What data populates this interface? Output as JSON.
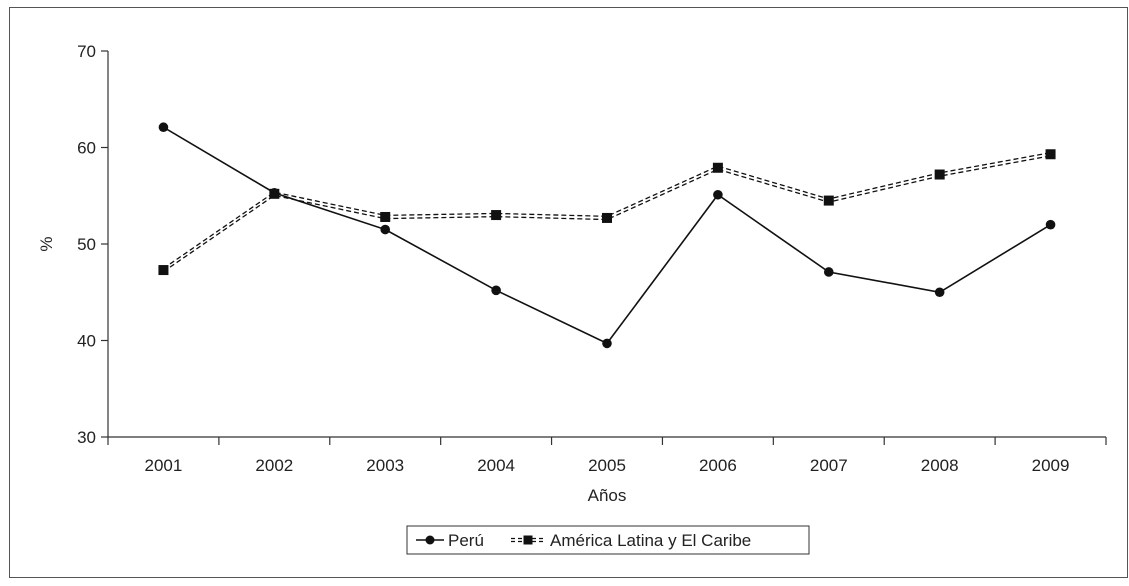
{
  "chart_data": {
    "type": "line",
    "title": "",
    "xlabel": "Años",
    "ylabel": "%",
    "categories": [
      "2001",
      "2002",
      "2003",
      "2004",
      "2005",
      "2006",
      "2007",
      "2008",
      "2009"
    ],
    "ylim": [
      30,
      70
    ],
    "yticks": [
      "30",
      "40",
      "50",
      "60",
      "70"
    ],
    "grid": false,
    "legend_position": "bottom",
    "series": [
      {
        "name": "Perú",
        "values": [
          62.1,
          55.3,
          51.5,
          45.2,
          39.7,
          55.1,
          47.1,
          45.0,
          52.0
        ],
        "marker": "circle",
        "line_style": "solid",
        "color": "#111111"
      },
      {
        "name": "América Latina y El Caribe",
        "values": [
          47.3,
          55.2,
          52.8,
          53.0,
          52.7,
          57.9,
          54.5,
          57.2,
          59.3
        ],
        "marker": "square",
        "line_style": "double-dashed",
        "color": "#111111"
      }
    ]
  }
}
